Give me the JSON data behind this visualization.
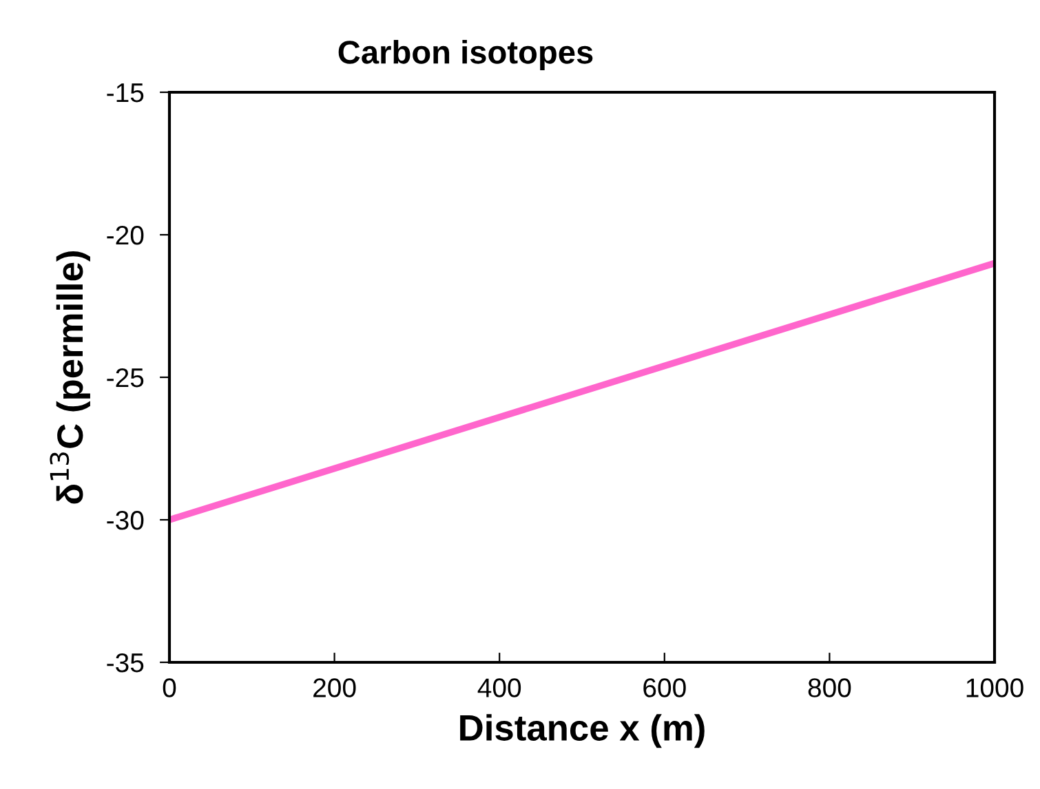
{
  "chart_data": {
    "type": "line",
    "title": "Carbon isotopes",
    "xlabel": "Distance x (m)",
    "ylabel": "δ$^{13}$C (permille)",
    "x": [
      0,
      1000
    ],
    "series": [
      {
        "color": "#ff66cc",
        "values": [
          -30,
          -21
        ]
      }
    ],
    "xlim": [
      0,
      1000
    ],
    "xticks": [
      0,
      200,
      400,
      600,
      800,
      1000
    ],
    "ylim": [
      -35,
      -15
    ],
    "yticks": [
      -35,
      -30,
      -25,
      -20,
      -15
    ],
    "grid": false,
    "legend": false,
    "marker": "none",
    "line_style": "solid"
  }
}
